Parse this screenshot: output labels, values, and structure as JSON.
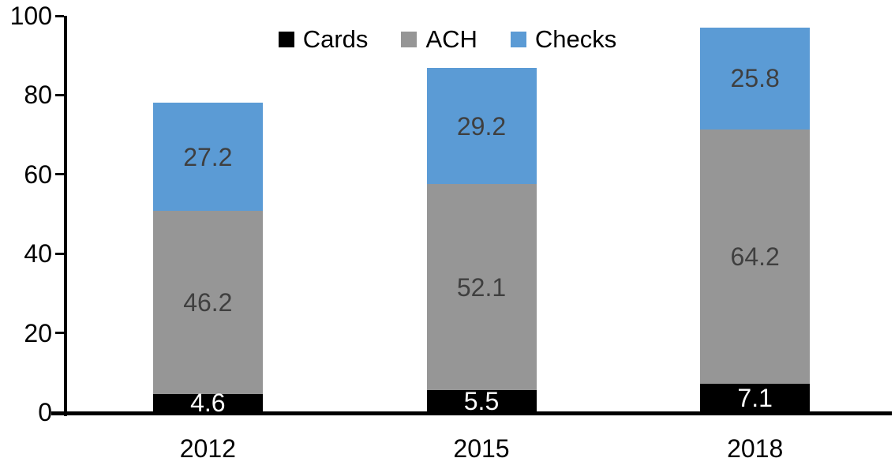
{
  "chart_data": {
    "type": "bar",
    "stacked": true,
    "categories": [
      "2012",
      "2015",
      "2018"
    ],
    "series": [
      {
        "name": "Cards",
        "color": "#000000",
        "label_color": "#ffffff",
        "values": [
          4.6,
          5.5,
          7.1
        ]
      },
      {
        "name": "ACH",
        "color": "#969696",
        "label_color": "#3f3f3f",
        "values": [
          46.2,
          52.1,
          64.2
        ]
      },
      {
        "name": "Checks",
        "color": "#5b9bd5",
        "label_color": "#3f3f3f",
        "values": [
          27.2,
          29.2,
          25.8
        ]
      }
    ],
    "yticks": [
      "0",
      "20",
      "40",
      "60",
      "80",
      "100"
    ],
    "ylim": [
      0,
      100
    ],
    "grid": false,
    "legend_position": "top-center",
    "axis_color": "#000000"
  }
}
